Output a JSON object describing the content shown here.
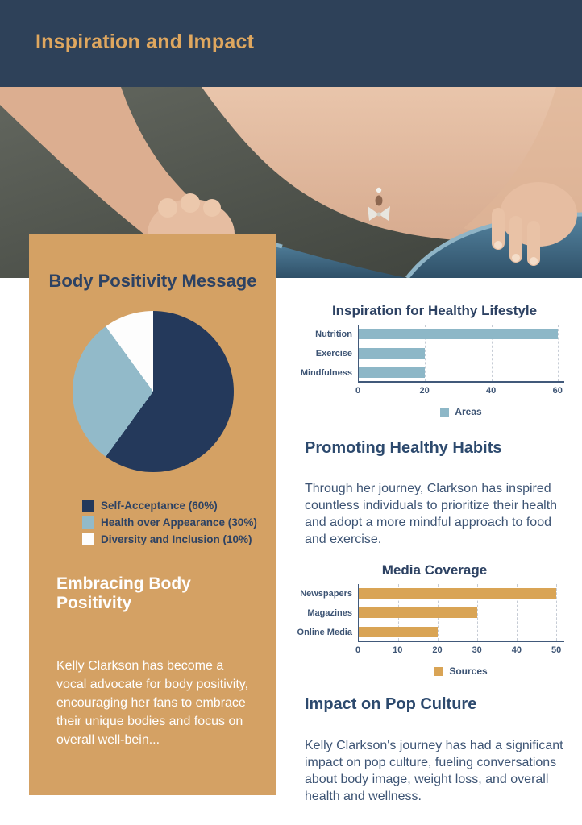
{
  "header": {
    "title": "Inspiration and Impact"
  },
  "photo": {
    "description": "person-pulling-oversized-jeans-waistband-weight-loss"
  },
  "left_panel": {
    "heading": "Embracing Body Positivity",
    "body": "Kelly Clarkson has become a vocal advocate for body positivity, encouraging her fans to embrace their unique bodies and focus on overall well-bein..."
  },
  "sections": {
    "healthy_habits": {
      "heading": "Promoting Healthy Habits",
      "body": "Through her journey, Clarkson has inspired countless individuals to prioritize their health and adopt a more mindful approach to food and exercise."
    },
    "pop_culture": {
      "heading": "Impact on Pop Culture",
      "body": "Kelly Clarkson's journey has had a significant impact on pop culture, fueling conversations about body image, weight loss, and overall health and wellness."
    }
  },
  "colors": {
    "header_bg": "#2e4159",
    "header_title": "#dfa75f",
    "panel_bg": "#d4a164",
    "navy_text": "#2d4263",
    "body_text": "#3d5474",
    "bar_blue": "#8db7c7",
    "bar_gold": "#d9a455",
    "pie_navy": "#24395b",
    "pie_blue": "#92bac9",
    "pie_white": "#fdfdfd"
  },
  "chart_data": [
    {
      "type": "pie",
      "title": "Body Positivity Message",
      "labels": [
        "Self-Acceptance (60%)",
        "Health over Appearance (30%)",
        "Diversity and Inclusion (10%)"
      ],
      "values": [
        60,
        30,
        10
      ],
      "colors": [
        "#24395b",
        "#92bac9",
        "#fdfdfd"
      ],
      "legend_position": "bottom"
    },
    {
      "type": "bar",
      "orientation": "horizontal",
      "title": "Inspiration for Healthy Lifestyle",
      "categories": [
        "Nutrition",
        "Exercise",
        "Mindfulness"
      ],
      "values": [
        60,
        20,
        20
      ],
      "series_name": "Areas",
      "color": "#8db7c7",
      "xlim": [
        0,
        62
      ],
      "xticks": [
        0,
        20,
        40,
        60
      ],
      "grid": "dashed-vertical"
    },
    {
      "type": "bar",
      "orientation": "horizontal",
      "title": "Media Coverage",
      "categories": [
        "Newspapers",
        "Magazines",
        "Online Media"
      ],
      "values": [
        50,
        30,
        20
      ],
      "series_name": "Sources",
      "color": "#d9a455",
      "xlim": [
        0,
        52
      ],
      "xticks": [
        0,
        10,
        20,
        30,
        40,
        50
      ],
      "grid": "dashed-vertical"
    }
  ]
}
